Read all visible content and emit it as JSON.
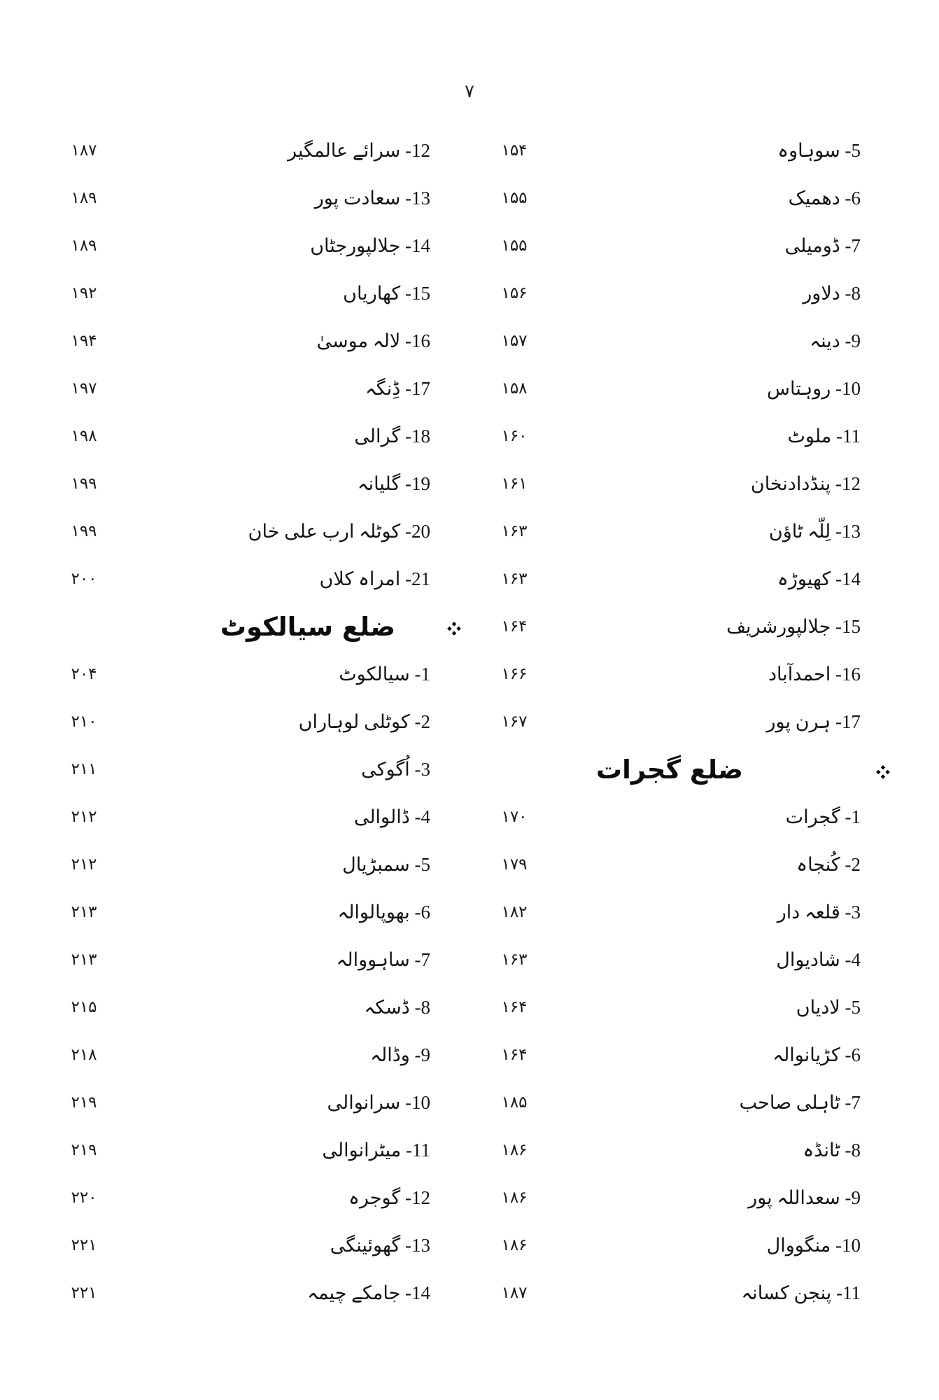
{
  "page_number": "۷",
  "icons": {
    "section_marker": "four-diamond ❖"
  },
  "columns": {
    "right": {
      "rows": [
        {
          "num": "5",
          "name": "سوہاوہ",
          "page": "۱۵۴"
        },
        {
          "num": "6",
          "name": "دھمیک",
          "page": "۱۵۵"
        },
        {
          "num": "7",
          "name": "ڈومیلی",
          "page": "۱۵۵"
        },
        {
          "num": "8",
          "name": "دلاور",
          "page": "۱۵۶"
        },
        {
          "num": "9",
          "name": "دینہ",
          "page": "۱۵۷"
        },
        {
          "num": "10",
          "name": "روہتاس",
          "page": "۱۵۸"
        },
        {
          "num": "11",
          "name": "ملوٹ",
          "page": "۱۶۰"
        },
        {
          "num": "12",
          "name": "پنڈدادنخان",
          "page": "۱۶۱"
        },
        {
          "num": "13",
          "name": "لِلّہ ٹاؤن",
          "page": "۱۶۳"
        },
        {
          "num": "14",
          "name": "کھیوڑہ",
          "page": "۱۶۳"
        },
        {
          "num": "15",
          "name": "جلالپورشریف",
          "page": "۱۶۴"
        },
        {
          "num": "16",
          "name": "احمدآباد",
          "page": "۱۶۶"
        },
        {
          "num": "17",
          "name": "ہرن پور",
          "page": "۱۶۷"
        },
        {
          "heading": "ضلع گجرات"
        },
        {
          "num": "1",
          "name": "گجرات",
          "page": "۱۷۰"
        },
        {
          "num": "2",
          "name": "کُنجاہ",
          "page": "۱۷۹"
        },
        {
          "num": "3",
          "name": "قلعہ دار",
          "page": "۱۸۲"
        },
        {
          "num": "4",
          "name": "شادیوال",
          "page": "۱۶۳"
        },
        {
          "num": "5",
          "name": "لادیاں",
          "page": "۱۶۴"
        },
        {
          "num": "6",
          "name": "کڑیانوالہ",
          "page": "۱۶۴"
        },
        {
          "num": "7",
          "name": "ٹاہلی صاحب",
          "page": "۱۸۵"
        },
        {
          "num": "8",
          "name": "ٹانڈہ",
          "page": "۱۸۶"
        },
        {
          "num": "9",
          "name": "سعداللہ پور",
          "page": "۱۸۶"
        },
        {
          "num": "10",
          "name": "منگووال",
          "page": "۱۸۶"
        },
        {
          "num": "11",
          "name": "پنجن کسانہ",
          "page": "۱۸۷"
        }
      ]
    },
    "left": {
      "rows": [
        {
          "num": "12",
          "name": "سرائے عالمگیر",
          "page": "۱۸۷"
        },
        {
          "num": "13",
          "name": "سعادت پور",
          "page": "۱۸۹"
        },
        {
          "num": "14",
          "name": "جلالپورجٹاں",
          "page": "۱۸۹"
        },
        {
          "num": "15",
          "name": "کھاریاں",
          "page": "۱۹۲"
        },
        {
          "num": "16",
          "name": "لالہ موسیٰ",
          "page": "۱۹۴"
        },
        {
          "num": "17",
          "name": "ڈِنگہ",
          "page": "۱۹۷"
        },
        {
          "num": "18",
          "name": "گرالی",
          "page": "۱۹۸"
        },
        {
          "num": "19",
          "name": "گلیانہ",
          "page": "۱۹۹"
        },
        {
          "num": "20",
          "name": "کوٹلہ ارب علی خان",
          "page": "۱۹۹"
        },
        {
          "num": "21",
          "name": "امراہ کلاں",
          "page": "۲۰۰"
        },
        {
          "heading": "ضلع سیالکوٹ"
        },
        {
          "num": "1",
          "name": "سیالکوٹ",
          "page": "۲۰۴"
        },
        {
          "num": "2",
          "name": "کوٹلی لوہاراں",
          "page": "۲۱۰"
        },
        {
          "num": "3",
          "name": "اُگوکی",
          "page": "۲۱۱"
        },
        {
          "num": "4",
          "name": "ڈالوالی",
          "page": "۲۱۲"
        },
        {
          "num": "5",
          "name": "سمبڑیال",
          "page": "۲۱۲"
        },
        {
          "num": "6",
          "name": "بھوپالوالہ",
          "page": "۲۱۳"
        },
        {
          "num": "7",
          "name": "ساہووالہ",
          "page": "۲۱۳"
        },
        {
          "num": "8",
          "name": "ڈسکہ",
          "page": "۲۱۵"
        },
        {
          "num": "9",
          "name": "وڈالہ",
          "page": "۲۱۸"
        },
        {
          "num": "10",
          "name": "سرانوالی",
          "page": "۲۱۹"
        },
        {
          "num": "11",
          "name": "میٹرانوالی",
          "page": "۲۱۹"
        },
        {
          "num": "12",
          "name": "گوجرہ",
          "page": "۲۲۰"
        },
        {
          "num": "13",
          "name": "گھوئینگی",
          "page": "۲۲۱"
        },
        {
          "num": "14",
          "name": "جامکے چیمہ",
          "page": "۲۲۱"
        }
      ]
    }
  }
}
